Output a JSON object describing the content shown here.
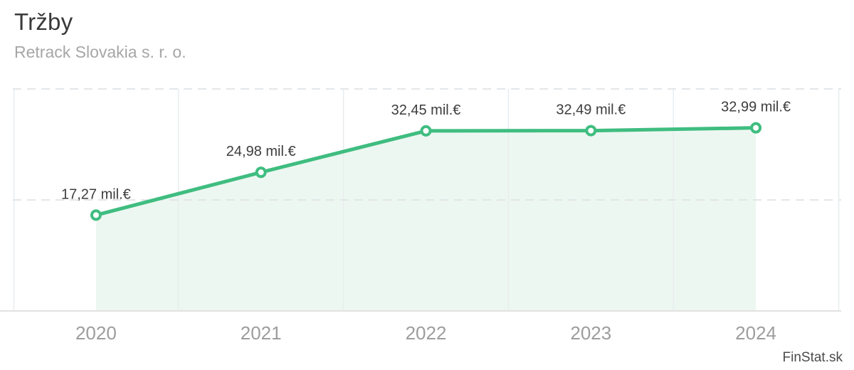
{
  "header": {
    "title": "Tržby",
    "subtitle": "Retrack Slovakia s. r. o."
  },
  "watermark": "FinStat.sk",
  "colors": {
    "line": "#3fbd80",
    "area_fill": "#edf7f1",
    "marker_fill": "#ffffff",
    "grid_dashed": "#dfe3e6",
    "grid_vertical": "#e8edef",
    "axis_line": "#e2e2e2",
    "point_label": "#3d3d3d",
    "axis_label": "#9d9d9d"
  },
  "chart_data": {
    "type": "line",
    "title": "Tržby",
    "subtitle": "Retrack Slovakia s. r. o.",
    "categories": [
      "2020",
      "2021",
      "2022",
      "2023",
      "2024"
    ],
    "values": [
      17.27,
      24.98,
      32.45,
      32.49,
      32.99
    ],
    "point_labels": [
      "17,27 mil.€",
      "24,98 mil.€",
      "32,45 mil.€",
      "32,49 mil.€",
      "32,99 mil.€"
    ],
    "unit": "mil.€",
    "xlabel": "",
    "ylabel": "",
    "ylim": [
      0,
      40
    ],
    "y_gridlines": [
      20,
      40
    ],
    "gridline_style": "dashed",
    "area": true,
    "markers": true,
    "legend": "none",
    "x_axis_position": "bottom"
  }
}
